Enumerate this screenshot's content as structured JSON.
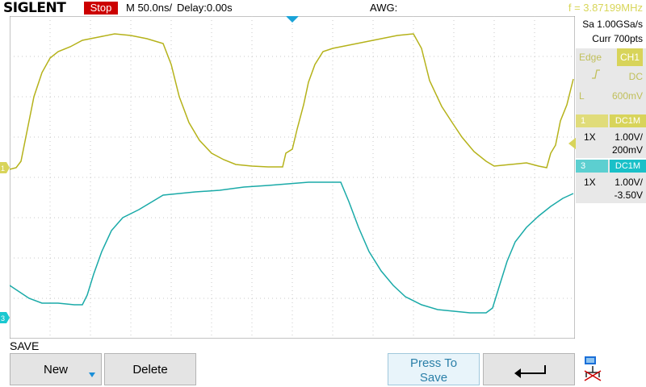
{
  "header": {
    "brand": "SIGLENT",
    "run_state": "Stop",
    "timebase": "M 50.0ns/",
    "delay": "Delay:0.00s",
    "awg": "AWG:",
    "frequency": "f = 3.87199MHz"
  },
  "acquisition": {
    "sample_rate": "Sa 1.00GSa/s",
    "memory": "Curr 700pts"
  },
  "trigger": {
    "label": "Edge",
    "source": "CH1",
    "coupling": "DC",
    "level_label": "L",
    "level": "600mV"
  },
  "channels": [
    {
      "number": "1",
      "coupling": "DC1M",
      "probe": "1X",
      "scale": "1.00V/",
      "offset": "200mV",
      "color": "#b5b21a"
    },
    {
      "number": "3",
      "coupling": "DC1M",
      "probe": "1X",
      "scale": "1.00V/",
      "offset": "-3.50V",
      "color": "#1aaaa8"
    }
  ],
  "menu": {
    "title": "SAVE",
    "new_label": "New",
    "delete_label": "Delete",
    "press_line1": "Press To",
    "press_line2": "Save"
  },
  "icons": {
    "trigger_slope": "rising-edge-icon",
    "new_submenu": "down-arrow-icon",
    "back": "return-arrow-icon",
    "network": "lan-icon",
    "trigger_position": "triangle-down-icon"
  }
}
